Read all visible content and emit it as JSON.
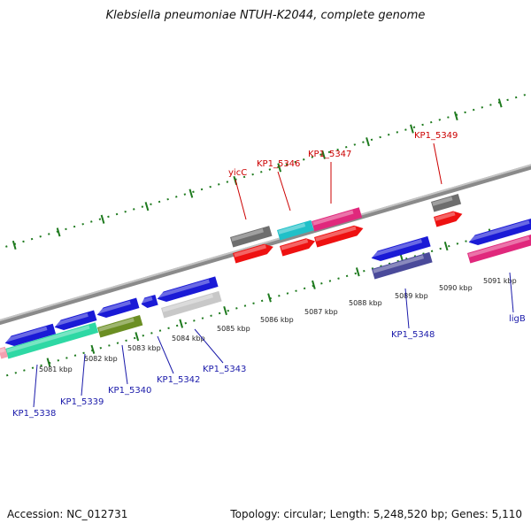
{
  "title": "Klebsiella pneumoniae NTUH-K2044, complete genome",
  "footer": {
    "accession": "Accession: NC_012731",
    "summary": "Topology: circular; Length: 5,248,520 bp; Genes: 5,110"
  },
  "scale": {
    "kbp_labels": [
      "5081 kbp",
      "5082 kbp",
      "5083 kbp",
      "5084 kbp",
      "5085 kbp",
      "5086 kbp",
      "5087 kbp",
      "5088 kbp",
      "5089 kbp",
      "5090 kbp",
      "5091 kbp"
    ]
  },
  "colors": {
    "forward_label": "#cc0000",
    "reverse_label": "#1a1aaa",
    "backbone": "#8a8a8a",
    "ticks": "#1e7a1e"
  },
  "genes": [
    {
      "name": "KP1_5338",
      "strand": "reverse",
      "color": "#2ed8a4"
    },
    {
      "name": "KP1_5339",
      "strand": "reverse",
      "color": "#1a1ad6"
    },
    {
      "name": "KP1_5340",
      "strand": "reverse",
      "color": "#6b8e23"
    },
    {
      "name": "KP1_5342",
      "strand": "reverse",
      "color": "#1a1ad6"
    },
    {
      "name": "KP1_5343",
      "strand": "reverse",
      "color": "#c8c8c8"
    },
    {
      "name": "yicC",
      "strand": "forward",
      "color": "#6e6e6e"
    },
    {
      "name": "KP1_5346",
      "strand": "forward",
      "color": "#20c0c8"
    },
    {
      "name": "KP1_5347",
      "strand": "forward",
      "color": "#e0287c"
    },
    {
      "name": "KP1_5348",
      "strand": "reverse",
      "color": "#4a4a9a"
    },
    {
      "name": "KP1_5349",
      "strand": "forward",
      "color": "#6e6e6e"
    },
    {
      "name": "ligB",
      "strand": "reverse",
      "color": "#e0287c"
    }
  ]
}
